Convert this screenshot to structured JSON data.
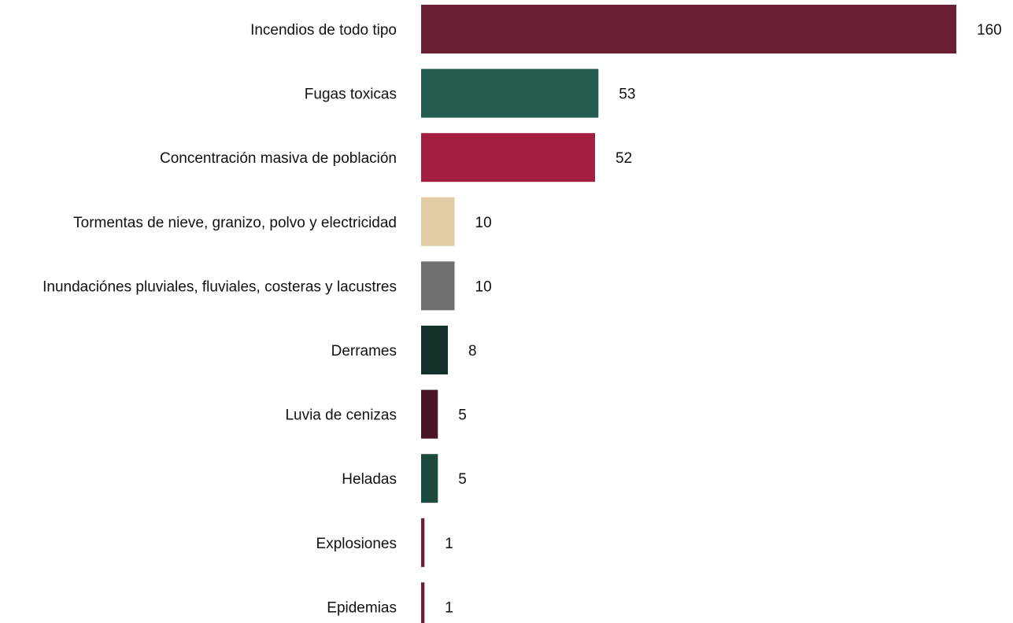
{
  "chart_data": {
    "type": "bar",
    "orientation": "horizontal",
    "categories": [
      "Incendios de todo tipo",
      "Fugas toxicas",
      "Concentración masiva de población",
      "Tormentas de nieve, granizo, polvo y electricidad",
      "Inundaciónes pluviales, fluviales, costeras y lacustres",
      "Derrames",
      "Luvia de cenizas",
      "Heladas",
      "Explosiones",
      "Epidemias"
    ],
    "values": [
      160,
      53,
      52,
      10,
      10,
      8,
      5,
      5,
      1,
      1
    ],
    "value_labels": [
      "160",
      "53",
      "52",
      "10",
      "10",
      "8",
      "5",
      "5",
      "1",
      "1"
    ],
    "colors": [
      "#6b1f33",
      "#235b4e",
      "#a21f42",
      "#e2cca3",
      "#6f6f6f",
      "#13322b",
      "#4a1524",
      "#1d4a3e",
      "#6b1f33",
      "#6b1f33"
    ],
    "xlim": [
      0,
      160
    ],
    "grid": false,
    "legend": "none",
    "title": "",
    "xlabel": "",
    "ylabel": ""
  }
}
